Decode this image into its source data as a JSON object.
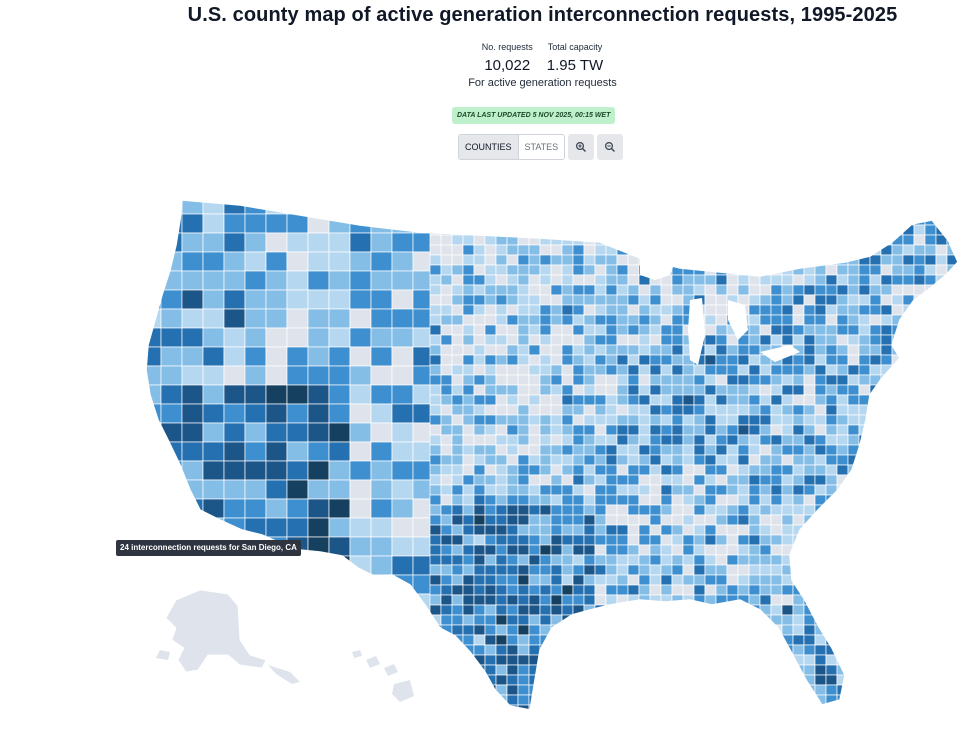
{
  "title": "U.S. county map of active generation interconnection requests, 1995-2025",
  "stats": {
    "requests_label": "No. requests",
    "requests_value": "10,022",
    "capacity_label": "Total capacity",
    "capacity_value": "1.95 TW",
    "note": "For active generation requests"
  },
  "badge": "DATA LAST UPDATED 5 NOV 2025, 00:15 WET",
  "toggle": {
    "counties": "COUNTIES",
    "states": "STATES",
    "active": "counties"
  },
  "zoom": {
    "in_icon": "zoom-in-icon",
    "out_icon": "zoom-out-icon"
  },
  "tooltip": "24 interconnection requests for San Diego, CA",
  "colors": {
    "none": "#dfe4ec",
    "low": "#b6d7f0",
    "mid_low": "#84bde6",
    "mid": "#3d8fd0",
    "mid_high": "#2570b0",
    "high": "#1c5587",
    "highest": "#16405f"
  }
}
